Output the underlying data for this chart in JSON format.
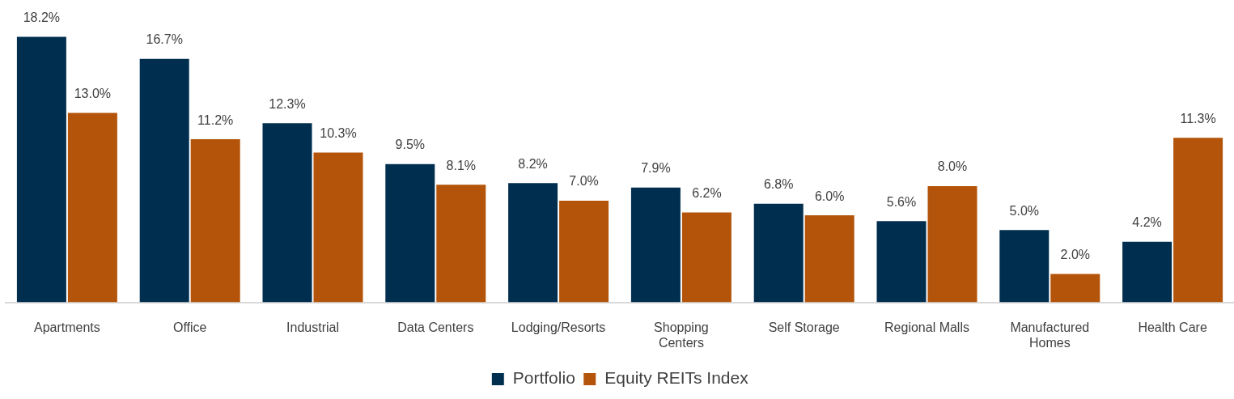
{
  "chart_data": {
    "type": "bar",
    "categories": [
      "Apartments",
      "Office",
      "Industrial",
      "Data Centers",
      "Lodging/Resorts",
      "Shopping Centers",
      "Self Storage",
      "Regional Malls",
      "Manufactured Homes",
      "Health Care"
    ],
    "series": [
      {
        "name": "Portfolio",
        "color": "#002e4f",
        "values": [
          18.2,
          16.7,
          12.3,
          9.5,
          8.2,
          7.9,
          6.8,
          5.6,
          5.0,
          4.2
        ],
        "value_labels": [
          "18.2%",
          "16.7%",
          "12.3%",
          "9.5%",
          "8.2%",
          "7.9%",
          "6.8%",
          "5.6%",
          "5.0%",
          "4.2%"
        ]
      },
      {
        "name": "Equity REITs Index",
        "color": "#b3540a",
        "values": [
          13.0,
          11.2,
          10.3,
          8.1,
          7.0,
          6.2,
          6.0,
          8.0,
          2.0,
          11.3
        ],
        "value_labels": [
          "13.0%",
          "11.2%",
          "10.3%",
          "8.1%",
          "7.0%",
          "6.2%",
          "6.0%",
          "8.0%",
          "2.0%",
          "11.3%"
        ]
      }
    ],
    "legend": "bottom"
  }
}
